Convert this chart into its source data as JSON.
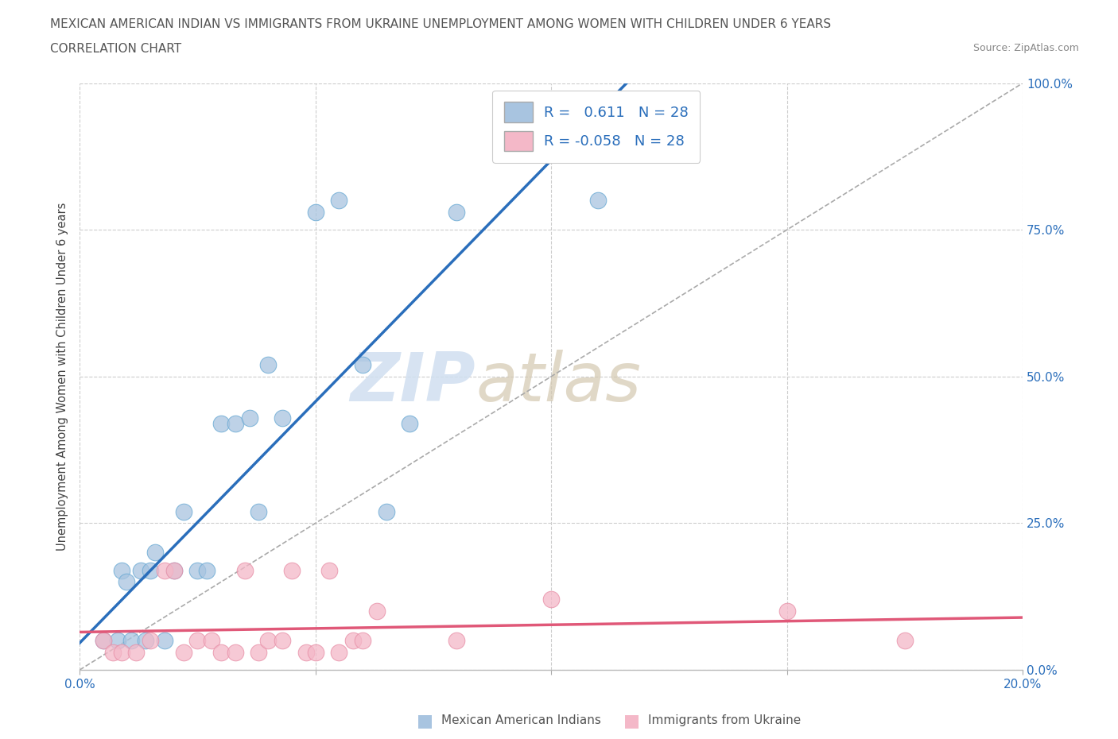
{
  "title_line1": "MEXICAN AMERICAN INDIAN VS IMMIGRANTS FROM UKRAINE UNEMPLOYMENT AMONG WOMEN WITH CHILDREN UNDER 6 YEARS",
  "title_line2": "CORRELATION CHART",
  "source": "Source: ZipAtlas.com",
  "ylabel": "Unemployment Among Women with Children Under 6 years",
  "watermark_zip": "ZIP",
  "watermark_atlas": "atlas",
  "xmin": 0.0,
  "xmax": 0.2,
  "ymin": 0.0,
  "ymax": 1.0,
  "r_blue": 0.611,
  "n_blue": 28,
  "r_pink": -0.058,
  "n_pink": 28,
  "blue_color": "#a8c4e0",
  "pink_color": "#f4b8c8",
  "blue_line_color": "#2a6ebb",
  "pink_line_color": "#e05878",
  "legend_blue_label": "Mexican American Indians",
  "legend_pink_label": "Immigrants from Ukraine",
  "blue_x": [
    0.005,
    0.008,
    0.009,
    0.01,
    0.011,
    0.013,
    0.014,
    0.015,
    0.016,
    0.018,
    0.02,
    0.022,
    0.025,
    0.027,
    0.03,
    0.033,
    0.036,
    0.038,
    0.04,
    0.043,
    0.05,
    0.055,
    0.06,
    0.065,
    0.07,
    0.08,
    0.1,
    0.11
  ],
  "blue_y": [
    0.05,
    0.05,
    0.17,
    0.15,
    0.05,
    0.17,
    0.05,
    0.17,
    0.2,
    0.05,
    0.17,
    0.27,
    0.17,
    0.17,
    0.42,
    0.42,
    0.43,
    0.27,
    0.52,
    0.43,
    0.78,
    0.8,
    0.52,
    0.27,
    0.42,
    0.78,
    0.95,
    0.8
  ],
  "pink_x": [
    0.005,
    0.007,
    0.009,
    0.012,
    0.015,
    0.018,
    0.02,
    0.022,
    0.025,
    0.028,
    0.03,
    0.033,
    0.035,
    0.038,
    0.04,
    0.043,
    0.045,
    0.048,
    0.05,
    0.053,
    0.055,
    0.058,
    0.06,
    0.063,
    0.08,
    0.1,
    0.15,
    0.175
  ],
  "pink_y": [
    0.05,
    0.03,
    0.03,
    0.03,
    0.05,
    0.17,
    0.17,
    0.03,
    0.05,
    0.05,
    0.03,
    0.03,
    0.17,
    0.03,
    0.05,
    0.05,
    0.17,
    0.03,
    0.03,
    0.17,
    0.03,
    0.05,
    0.05,
    0.1,
    0.05,
    0.12,
    0.1,
    0.05
  ],
  "blue_line_x0": 0.0,
  "blue_line_x1": 0.2,
  "pink_line_x0": 0.0,
  "pink_line_x1": 0.2
}
